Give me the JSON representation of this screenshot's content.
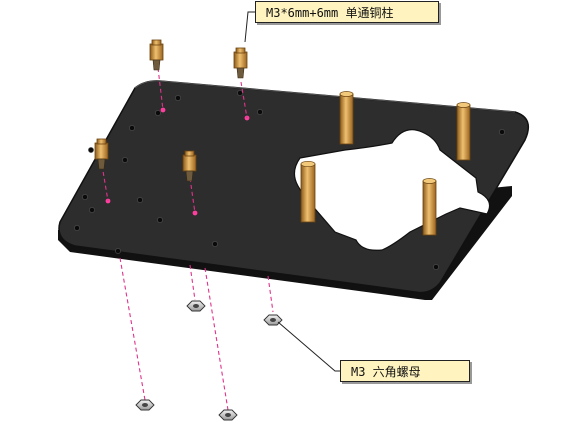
{
  "callouts": {
    "standoff_label": "M3*6mm+6mm 单通铜柱",
    "nut_label": "M3 六角螺母"
  },
  "colors": {
    "plate": "#2b2b2b",
    "plate_edge": "#111111",
    "brass": "#d9a64e",
    "brass_dark": "#8a5a1a",
    "guide_line": "#e0338a",
    "label_bg": "#fff3bf"
  }
}
